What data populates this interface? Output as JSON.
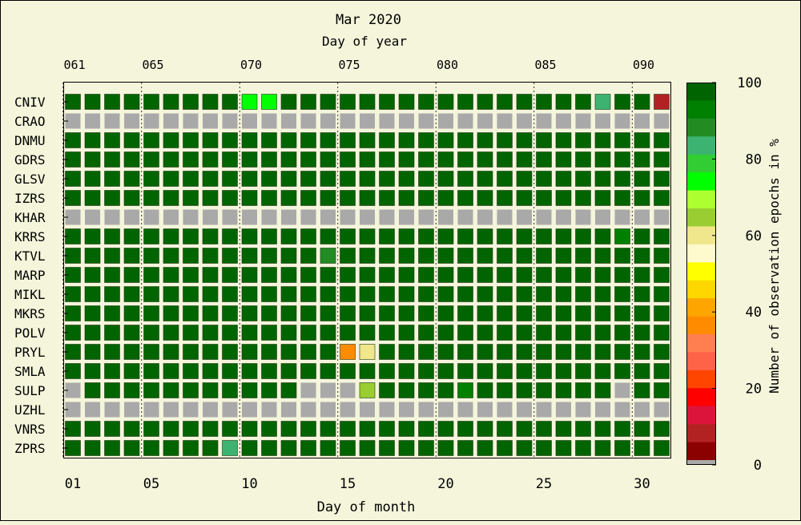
{
  "chart_data": {
    "type": "heatmap",
    "title": "Mar 2020",
    "xlabel_top": "Day of year",
    "xlabel": "Day of month",
    "colorbar_label": "Number of observation epochs in %",
    "top_ticks": [
      "061",
      "065",
      "070",
      "075",
      "080",
      "085",
      "090"
    ],
    "top_tick_days": [
      1,
      5,
      10,
      15,
      20,
      25,
      30
    ],
    "bottom_ticks": [
      "01",
      "05",
      "10",
      "15",
      "20",
      "25",
      "30"
    ],
    "bottom_tick_days": [
      1,
      5,
      10,
      15,
      20,
      25,
      30
    ],
    "colorbar_ticks": [
      "100",
      "80",
      "60",
      "40",
      "20",
      "0"
    ],
    "colorbar_tick_values": [
      100,
      80,
      60,
      40,
      20,
      0
    ],
    "days": 31,
    "stations": [
      "CNIV",
      "CRAO",
      "DNMU",
      "GDRS",
      "GLSV",
      "IZRS",
      "KHAR",
      "KRRS",
      "KTVL",
      "MARP",
      "MIKL",
      "MKRS",
      "POLV",
      "PRYL",
      "SMLA",
      "SULP",
      "UZHL",
      "VNRS",
      "ZPRS"
    ],
    "colorbar_colors": [
      "#006400",
      "#008000",
      "#228b22",
      "#3cb371",
      "#32cd32",
      "#00ff00",
      "#adff2f",
      "#9acd32",
      "#f0e68c",
      "#fffacd",
      "#ffff00",
      "#ffd700",
      "#ffa500",
      "#ff8c00",
      "#ff7f50",
      "#ff6347",
      "#ff4500",
      "#ff0000",
      "#dc143c",
      "#b22222",
      "#8b0000"
    ],
    "no_data_color": "#a9a9a9",
    "values": [
      [
        100,
        100,
        100,
        100,
        100,
        100,
        96,
        100,
        100,
        76,
        72,
        100,
        100,
        100,
        100,
        100,
        100,
        100,
        100,
        100,
        100,
        100,
        100,
        100,
        100,
        100,
        100,
        84,
        100,
        96,
        8
      ],
      [
        null,
        null,
        null,
        null,
        null,
        null,
        null,
        null,
        null,
        null,
        null,
        null,
        null,
        null,
        null,
        null,
        null,
        null,
        null,
        null,
        null,
        null,
        null,
        null,
        null,
        null,
        null,
        null,
        null,
        null,
        null
      ],
      [
        100,
        100,
        100,
        100,
        100,
        100,
        100,
        100,
        100,
        100,
        100,
        100,
        100,
        100,
        100,
        100,
        100,
        100,
        100,
        100,
        100,
        100,
        100,
        100,
        100,
        100,
        100,
        100,
        100,
        100,
        100
      ],
      [
        100,
        100,
        100,
        100,
        100,
        100,
        100,
        100,
        100,
        100,
        100,
        100,
        100,
        100,
        100,
        100,
        100,
        100,
        100,
        100,
        100,
        100,
        100,
        100,
        100,
        100,
        100,
        100,
        100,
        100,
        100
      ],
      [
        100,
        100,
        100,
        100,
        100,
        100,
        100,
        100,
        100,
        100,
        100,
        100,
        100,
        100,
        100,
        100,
        100,
        100,
        100,
        100,
        100,
        100,
        100,
        100,
        100,
        100,
        100,
        100,
        100,
        100,
        100
      ],
      [
        100,
        100,
        100,
        100,
        100,
        100,
        100,
        100,
        100,
        100,
        100,
        100,
        100,
        100,
        100,
        100,
        100,
        100,
        100,
        100,
        100,
        100,
        100,
        100,
        100,
        100,
        100,
        100,
        100,
        100,
        100
      ],
      [
        null,
        null,
        null,
        null,
        null,
        null,
        null,
        null,
        null,
        null,
        null,
        null,
        null,
        null,
        null,
        null,
        null,
        null,
        null,
        null,
        null,
        null,
        null,
        null,
        null,
        null,
        null,
        null,
        null,
        null,
        null
      ],
      [
        100,
        100,
        100,
        100,
        100,
        100,
        100,
        100,
        100,
        100,
        100,
        100,
        100,
        100,
        100,
        100,
        100,
        100,
        100,
        100,
        100,
        100,
        100,
        100,
        100,
        100,
        100,
        96,
        92,
        100,
        100
      ],
      [
        100,
        100,
        100,
        100,
        100,
        100,
        100,
        100,
        100,
        100,
        100,
        100,
        100,
        88,
        100,
        100,
        100,
        100,
        100,
        100,
        100,
        100,
        100,
        100,
        100,
        100,
        100,
        100,
        100,
        100,
        100
      ],
      [
        100,
        100,
        100,
        100,
        100,
        100,
        100,
        96,
        100,
        100,
        100,
        100,
        100,
        100,
        100,
        100,
        100,
        100,
        100,
        100,
        100,
        100,
        100,
        100,
        100,
        100,
        100,
        100,
        100,
        100,
        100
      ],
      [
        100,
        100,
        100,
        100,
        100,
        100,
        100,
        100,
        100,
        100,
        100,
        100,
        100,
        100,
        100,
        100,
        100,
        100,
        100,
        100,
        100,
        100,
        100,
        100,
        100,
        100,
        100,
        100,
        100,
        100,
        100
      ],
      [
        100,
        100,
        100,
        100,
        100,
        100,
        100,
        100,
        100,
        100,
        100,
        100,
        100,
        100,
        100,
        100,
        100,
        100,
        100,
        100,
        100,
        100,
        100,
        100,
        100,
        100,
        100,
        100,
        100,
        100,
        100
      ],
      [
        100,
        100,
        100,
        100,
        100,
        100,
        100,
        100,
        100,
        100,
        100,
        100,
        100,
        100,
        100,
        100,
        100,
        100,
        100,
        100,
        100,
        100,
        100,
        100,
        100,
        100,
        100,
        100,
        100,
        100,
        100
      ],
      [
        100,
        100,
        100,
        100,
        100,
        100,
        100,
        100,
        100,
        100,
        100,
        100,
        100,
        100,
        36,
        60,
        100,
        100,
        100,
        100,
        100,
        100,
        100,
        100,
        100,
        100,
        100,
        100,
        100,
        100,
        100
      ],
      [
        100,
        100,
        100,
        100,
        100,
        100,
        100,
        100,
        100,
        100,
        100,
        100,
        100,
        100,
        100,
        100,
        100,
        100,
        100,
        100,
        100,
        100,
        100,
        100,
        100,
        100,
        100,
        100,
        100,
        100,
        100
      ],
      [
        null,
        100,
        100,
        100,
        100,
        100,
        100,
        100,
        100,
        100,
        100,
        100,
        null,
        null,
        null,
        64,
        100,
        100,
        100,
        100,
        92,
        100,
        100,
        100,
        96,
        100,
        100,
        100,
        null,
        100,
        100
      ],
      [
        null,
        null,
        null,
        null,
        null,
        null,
        null,
        null,
        null,
        null,
        null,
        null,
        null,
        null,
        null,
        null,
        null,
        null,
        null,
        null,
        null,
        null,
        null,
        null,
        null,
        null,
        null,
        null,
        null,
        null,
        null
      ],
      [
        100,
        100,
        100,
        100,
        100,
        100,
        100,
        100,
        100,
        100,
        100,
        100,
        100,
        100,
        100,
        100,
        100,
        100,
        100,
        100,
        100,
        100,
        100,
        100,
        100,
        100,
        100,
        100,
        100,
        100,
        100
      ],
      [
        100,
        100,
        100,
        100,
        100,
        100,
        100,
        100,
        84,
        100,
        100,
        100,
        100,
        100,
        100,
        100,
        100,
        100,
        100,
        100,
        100,
        100,
        100,
        100,
        100,
        100,
        100,
        100,
        100,
        100,
        100
      ]
    ]
  }
}
